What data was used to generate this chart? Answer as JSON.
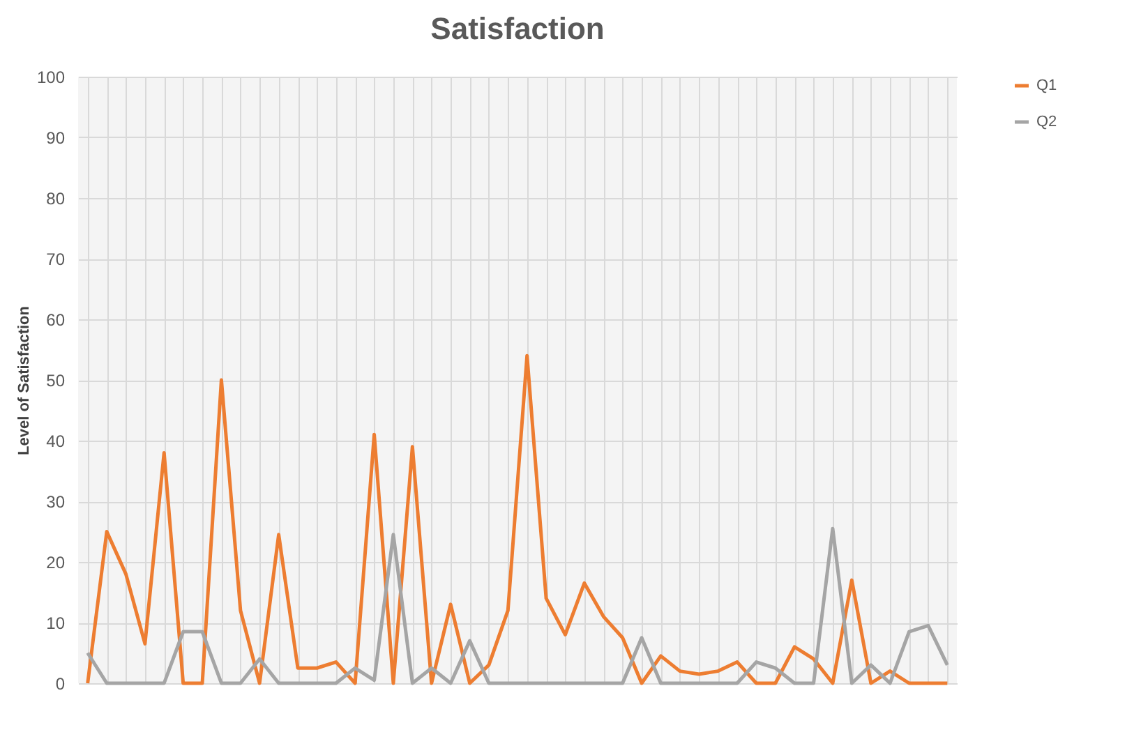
{
  "chart_data": {
    "type": "line",
    "title": "Satisfaction",
    "ylabel": "Level of Satisfaction",
    "categories": [
      null,
      null,
      null,
      null,
      null,
      null,
      null,
      null,
      null,
      null,
      null,
      null,
      null,
      null,
      null,
      null,
      null,
      null,
      null,
      null,
      null,
      null,
      null,
      null,
      null,
      null,
      null,
      null,
      null,
      null,
      null,
      null,
      null,
      null,
      null,
      null,
      null,
      null,
      null,
      null,
      null,
      null,
      null,
      null,
      null,
      null
    ],
    "series": [
      {
        "name": "Q1",
        "color": "#ed7d31",
        "values": [
          0,
          25,
          18,
          6.5,
          38,
          0,
          0,
          50,
          12,
          0,
          24.5,
          2.5,
          2.5,
          3.5,
          0,
          41,
          0,
          39,
          0,
          13,
          0,
          3,
          12,
          54,
          14,
          8,
          16.5,
          11,
          7.5,
          0,
          4.5,
          2,
          1.5,
          2,
          3.5,
          0,
          0,
          6,
          4,
          0,
          17,
          0,
          2,
          0,
          0,
          0
        ]
      },
      {
        "name": "Q2",
        "color": "#a5a5a5",
        "values": [
          5,
          0,
          0,
          0,
          0,
          8.5,
          8.5,
          0,
          0,
          4,
          0,
          0,
          0,
          0,
          2.5,
          0.5,
          24.5,
          0,
          2.5,
          0,
          7,
          0,
          0,
          0,
          0,
          0,
          0,
          0,
          0,
          7.5,
          0,
          0,
          0,
          0,
          0,
          3.5,
          2.5,
          0,
          0,
          25.5,
          0,
          3,
          0,
          8.5,
          9.5,
          3
        ]
      }
    ],
    "ylim": [
      0,
      100
    ],
    "yticks": [
      0,
      10,
      20,
      30,
      40,
      50,
      60,
      70,
      80,
      90,
      100
    ],
    "grid": true,
    "legend": "right",
    "tick_labels": "y",
    "line_style": "solid",
    "marker": "none"
  }
}
